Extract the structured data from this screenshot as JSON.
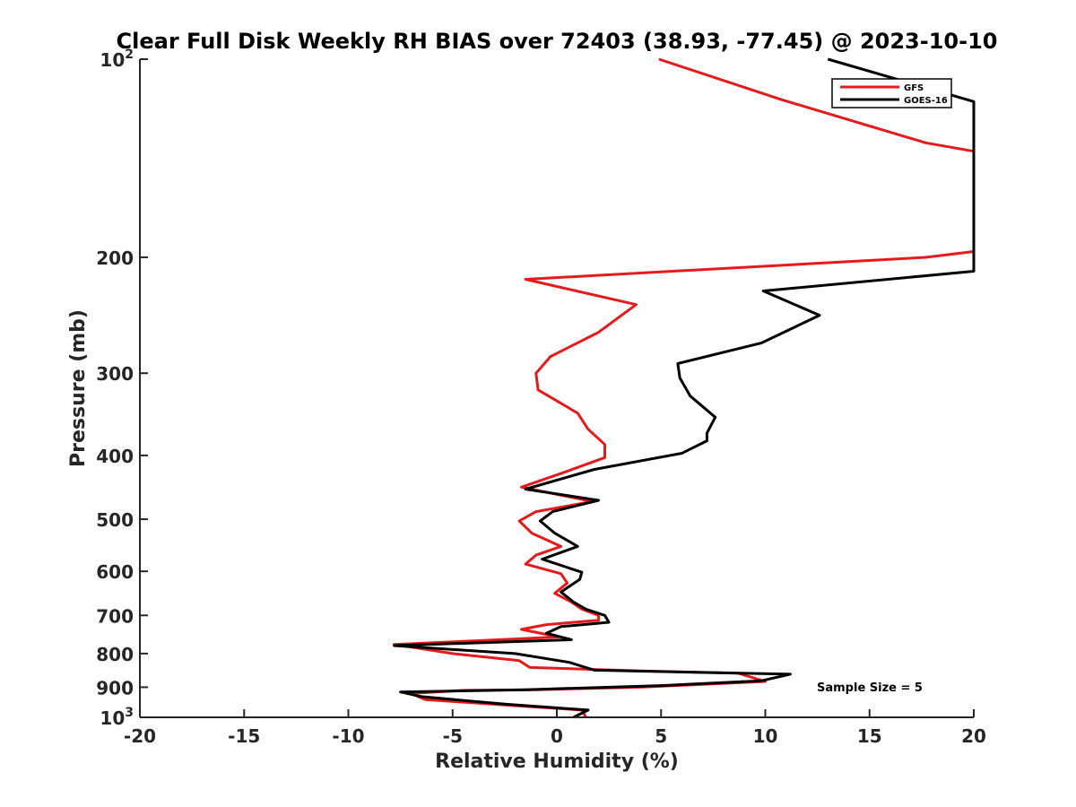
{
  "chart_data": {
    "type": "line",
    "title": "Clear Full Disk Weekly RH BIAS over 72403 (38.93, -77.45) @ 2023-10-10",
    "xlabel": "Relative Humidity (%)",
    "ylabel": "Pressure (mb)",
    "xlim": [
      -20,
      20
    ],
    "ylim": [
      1000,
      100
    ],
    "y_scale": "log",
    "y_direction": "reversed",
    "grid": false,
    "legend_position": "top-right",
    "x_ticks": [
      "-20",
      "-15",
      "-10",
      "-5",
      "0",
      "5",
      "10",
      "15",
      "20"
    ],
    "y_ticks": [
      {
        "value": 100,
        "base": "10",
        "exp": "2"
      },
      {
        "value": 200,
        "label": "200"
      },
      {
        "value": 300,
        "label": "300"
      },
      {
        "value": 400,
        "label": "400"
      },
      {
        "value": 500,
        "label": "500"
      },
      {
        "value": 600,
        "label": "600"
      },
      {
        "value": 700,
        "label": "700"
      },
      {
        "value": 800,
        "label": "800"
      },
      {
        "value": 900,
        "label": "900"
      },
      {
        "value": 1000,
        "base": "10",
        "exp": "3"
      }
    ],
    "annotation": "Sample Size = 5",
    "series": [
      {
        "name": "GFS",
        "color": "#e41a1c",
        "points": [
          [
            4.9,
            100
          ],
          [
            10.7,
            115
          ],
          [
            17.7,
            134
          ],
          [
            20,
            138
          ],
          [
            20,
            196
          ],
          [
            17.7,
            200
          ],
          [
            -1.5,
            216
          ],
          [
            3.8,
            236
          ],
          [
            2.0,
            260
          ],
          [
            -0.3,
            283
          ],
          [
            -1.0,
            300
          ],
          [
            -0.9,
            318
          ],
          [
            1.0,
            345
          ],
          [
            1.5,
            365
          ],
          [
            2.3,
            385
          ],
          [
            2.3,
            403
          ],
          [
            0.3,
            425
          ],
          [
            -1.7,
            447
          ],
          [
            1.7,
            470
          ],
          [
            -1.0,
            487
          ],
          [
            -1.8,
            503
          ],
          [
            -1.2,
            525
          ],
          [
            0.2,
            550
          ],
          [
            -1.0,
            567
          ],
          [
            -1.5,
            585
          ],
          [
            0.2,
            605
          ],
          [
            0.5,
            625
          ],
          [
            -0.1,
            648
          ],
          [
            0.7,
            668
          ],
          [
            1.2,
            685
          ],
          [
            2.0,
            700
          ],
          [
            2.0,
            712
          ],
          [
            -0.5,
            723
          ],
          [
            -1.7,
            735
          ],
          [
            0.1,
            755
          ],
          [
            -7.8,
            775
          ],
          [
            -5.0,
            800
          ],
          [
            -1.8,
            820
          ],
          [
            -1.3,
            840
          ],
          [
            4.0,
            850
          ],
          [
            8.7,
            857
          ],
          [
            10.0,
            882
          ],
          [
            4.0,
            900
          ],
          [
            -1.0,
            908
          ],
          [
            -4.5,
            910
          ],
          [
            -7.0,
            920
          ],
          [
            -6.3,
            940
          ],
          [
            -2.0,
            960
          ],
          [
            1.2,
            975
          ],
          [
            1.4,
            1000
          ]
        ]
      },
      {
        "name": "GOES-16",
        "color": "#000000",
        "points": [
          [
            13.0,
            100
          ],
          [
            20,
            116
          ],
          [
            20,
            210
          ],
          [
            9.9,
            225
          ],
          [
            12.6,
            245
          ],
          [
            9.8,
            270
          ],
          [
            5.8,
            290
          ],
          [
            5.9,
            305
          ],
          [
            6.4,
            325
          ],
          [
            7.6,
            350
          ],
          [
            7.2,
            370
          ],
          [
            7.2,
            380
          ],
          [
            6.0,
            397
          ],
          [
            1.8,
            420
          ],
          [
            -1.5,
            450
          ],
          [
            2.0,
            468
          ],
          [
            -0.2,
            487
          ],
          [
            -0.8,
            503
          ],
          [
            -0.1,
            525
          ],
          [
            1.0,
            550
          ],
          [
            -0.7,
            575
          ],
          [
            1.2,
            602
          ],
          [
            1.1,
            617
          ],
          [
            0.2,
            645
          ],
          [
            0.8,
            668
          ],
          [
            1.4,
            685
          ],
          [
            2.3,
            700
          ],
          [
            2.5,
            717
          ],
          [
            0.2,
            728
          ],
          [
            -0.5,
            745
          ],
          [
            0.7,
            762
          ],
          [
            -7.8,
            778
          ],
          [
            -2.0,
            800
          ],
          [
            0.6,
            825
          ],
          [
            1.8,
            848
          ],
          [
            11.2,
            860
          ],
          [
            9.8,
            880
          ],
          [
            5.0,
            895
          ],
          [
            -1.5,
            908
          ],
          [
            -7.5,
            915
          ],
          [
            -6.5,
            930
          ],
          [
            -2.5,
            955
          ],
          [
            1.5,
            975
          ],
          [
            0.8,
            1000
          ]
        ]
      }
    ]
  }
}
